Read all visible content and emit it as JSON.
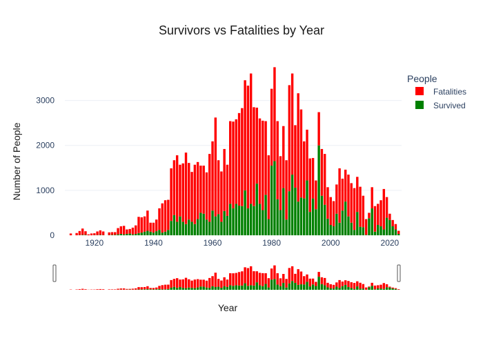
{
  "chart_data": {
    "type": "bar",
    "barmode": "stack",
    "title": "Survivors vs Fatalities by Year",
    "xlabel": "Year",
    "ylabel": "Number of People",
    "legend_title": "People",
    "legend_position": "top-right",
    "xlim": [
      1910,
      2024
    ],
    "ylim": [
      0,
      3700
    ],
    "x_ticks": [
      1920,
      1940,
      1960,
      1980,
      2000,
      2020
    ],
    "y_ticks": [
      0,
      1000,
      2000,
      3000
    ],
    "rangeslider": true,
    "colors": {
      "Fatalities": "#ff0000",
      "Survived": "#008000"
    },
    "x": [
      1912,
      1913,
      1914,
      1915,
      1916,
      1917,
      1918,
      1919,
      1920,
      1921,
      1922,
      1923,
      1924,
      1925,
      1926,
      1927,
      1928,
      1929,
      1930,
      1931,
      1932,
      1933,
      1934,
      1935,
      1936,
      1937,
      1938,
      1939,
      1940,
      1941,
      1942,
      1943,
      1944,
      1945,
      1946,
      1947,
      1948,
      1949,
      1950,
      1951,
      1952,
      1953,
      1954,
      1955,
      1956,
      1957,
      1958,
      1959,
      1960,
      1961,
      1962,
      1963,
      1964,
      1965,
      1966,
      1967,
      1968,
      1969,
      1970,
      1971,
      1972,
      1973,
      1974,
      1975,
      1976,
      1977,
      1978,
      1979,
      1980,
      1981,
      1982,
      1983,
      1984,
      1985,
      1986,
      1987,
      1988,
      1989,
      1990,
      1991,
      1992,
      1993,
      1994,
      1995,
      1996,
      1997,
      1998,
      1999,
      2000,
      2001,
      2002,
      2003,
      2004,
      2005,
      2006,
      2007,
      2008,
      2009,
      2010,
      2011,
      2012,
      2013,
      2014,
      2015,
      2016,
      2017,
      2018,
      2019,
      2020,
      2021,
      2022,
      2023
    ],
    "series": [
      {
        "name": "Survived",
        "values": [
          0,
          0,
          0,
          5,
          10,
          10,
          0,
          0,
          5,
          5,
          10,
          5,
          0,
          5,
          10,
          10,
          20,
          30,
          20,
          30,
          40,
          20,
          30,
          50,
          60,
          80,
          100,
          80,
          60,
          90,
          120,
          60,
          80,
          120,
          320,
          450,
          300,
          420,
          300,
          250,
          350,
          300,
          250,
          360,
          500,
          480,
          350,
          300,
          550,
          420,
          470,
          300,
          540,
          430,
          700,
          600,
          700,
          660,
          650,
          1000,
          600,
          700,
          650,
          1150,
          700,
          560,
          900,
          360,
          1550,
          1650,
          800,
          560,
          1050,
          350,
          980,
          1350,
          1060,
          750,
          840,
          820,
          1220,
          520,
          820,
          580,
          2000,
          880,
          680,
          370,
          230,
          200,
          480,
          280,
          550,
          750,
          420,
          280,
          120,
          520,
          190,
          180,
          10,
          380,
          600,
          80,
          230,
          200,
          130,
          390,
          340,
          200,
          130,
          30
        ]
      },
      {
        "name": "Fatalities",
        "values": [
          40,
          0,
          50,
          90,
          140,
          80,
          20,
          40,
          40,
          80,
          100,
          80,
          0,
          60,
          60,
          60,
          140,
          170,
          190,
          100,
          100,
          150,
          190,
          360,
          340,
          340,
          450,
          200,
          220,
          260,
          480,
          650,
          700,
          670,
          1170,
          1220,
          1480,
          1150,
          1300,
          1590,
          1260,
          1110,
          1320,
          1270,
          1050,
          1070,
          1050,
          1510,
          1540,
          2200,
          1200,
          1120,
          1380,
          1140,
          1840,
          1930,
          1880,
          2060,
          2180,
          2450,
          2730,
          2900,
          2200,
          1690,
          1900,
          1990,
          1640,
          1420,
          1710,
          2090,
          1740,
          1200,
          1380,
          1320,
          2360,
          2250,
          1390,
          2410,
          1960,
          1270,
          1130,
          1190,
          900,
          640,
          740,
          1040,
          1130,
          700,
          620,
          560,
          650,
          1210,
          710,
          710,
          930,
          880,
          930,
          780,
          890,
          700,
          350,
          120,
          470,
          570,
          470,
          580,
          900,
          460,
          140,
          140,
          120,
          70
        ]
      }
    ]
  }
}
